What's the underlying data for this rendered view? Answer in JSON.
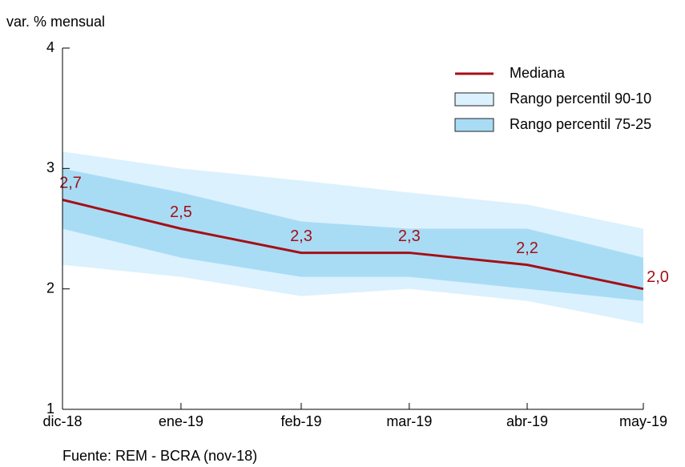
{
  "chart_data": {
    "type": "band-line",
    "y_label": "var. % mensual",
    "source": "Fuente: REM - BCRA (nov-18)",
    "categories": [
      "dic-18",
      "ene-19",
      "feb-19",
      "mar-19",
      "abr-19",
      "may-19"
    ],
    "ylim": [
      1,
      4
    ],
    "yticks": [
      1,
      2,
      3,
      4
    ],
    "legend": "top-right",
    "bands": [
      {
        "name": "Rango percentil 90-10",
        "color": "#dbf1fd",
        "high": [
          3.14,
          3.0,
          2.9,
          2.8,
          2.7,
          2.5
        ],
        "low": [
          2.2,
          2.1,
          1.94,
          2.0,
          1.9,
          1.71
        ]
      },
      {
        "name": "Rango percentil 75-25",
        "color": "#a8dcf5",
        "high": [
          3.0,
          2.8,
          2.56,
          2.5,
          2.5,
          2.26
        ],
        "low": [
          2.5,
          2.26,
          2.1,
          2.1,
          2.0,
          1.9
        ]
      }
    ],
    "series": [
      {
        "name": "Mediana",
        "color": "#a50f15",
        "values": [
          2.74,
          2.5,
          2.3,
          2.3,
          2.2,
          2.0
        ],
        "value_labels": [
          "2,7",
          "2,5",
          "2,3",
          "2,3",
          "2,2",
          "2,0"
        ]
      }
    ]
  }
}
